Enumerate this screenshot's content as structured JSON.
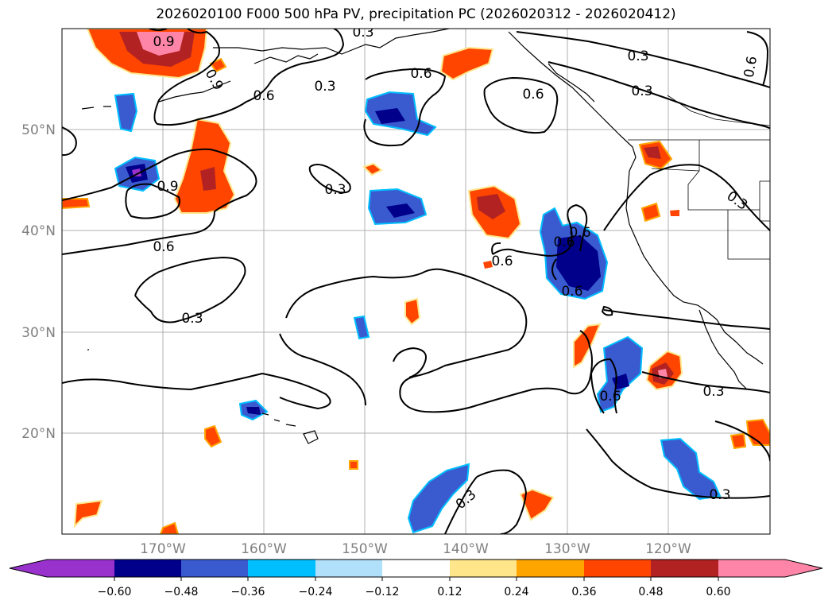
{
  "title": "2026020100 F000 500 hPa PV, precipitation PC (2026020312 - 2026020412)",
  "map": {
    "lon_range": [
      -180,
      -110
    ],
    "lat_range": [
      10,
      60
    ],
    "lat_labels": [
      "50°N",
      "40°N",
      "30°N",
      "20°N"
    ],
    "lon_labels": [
      "170°W",
      "160°W",
      "150°W",
      "140°W",
      "130°W",
      "120°W"
    ],
    "contour_labels": [
      "0.9",
      "0.9",
      "0.6",
      "0.6",
      "0.3",
      "0.3",
      "0.6",
      "0.6",
      "0.3",
      "0.3",
      "0.6",
      "0.9",
      "0.3",
      "0.6",
      "0.3",
      "0.6",
      "0.6",
      "0.3",
      "0.3",
      "0.3",
      "0.3",
      "0.6",
      "0.6"
    ]
  },
  "colorbar": {
    "ticks": [
      "−0.60",
      "−0.48",
      "−0.36",
      "−0.24",
      "−0.12",
      "0.12",
      "0.24",
      "0.36",
      "0.48",
      "0.60"
    ],
    "colors": [
      "#9932cc",
      "#00008b",
      "#3a5bd0",
      "#00bfff",
      "#b0e0fa",
      "#ffffff",
      "#ffe68a",
      "#ffa500",
      "#ff4500",
      "#b22222",
      "#ff85a8"
    ]
  }
}
